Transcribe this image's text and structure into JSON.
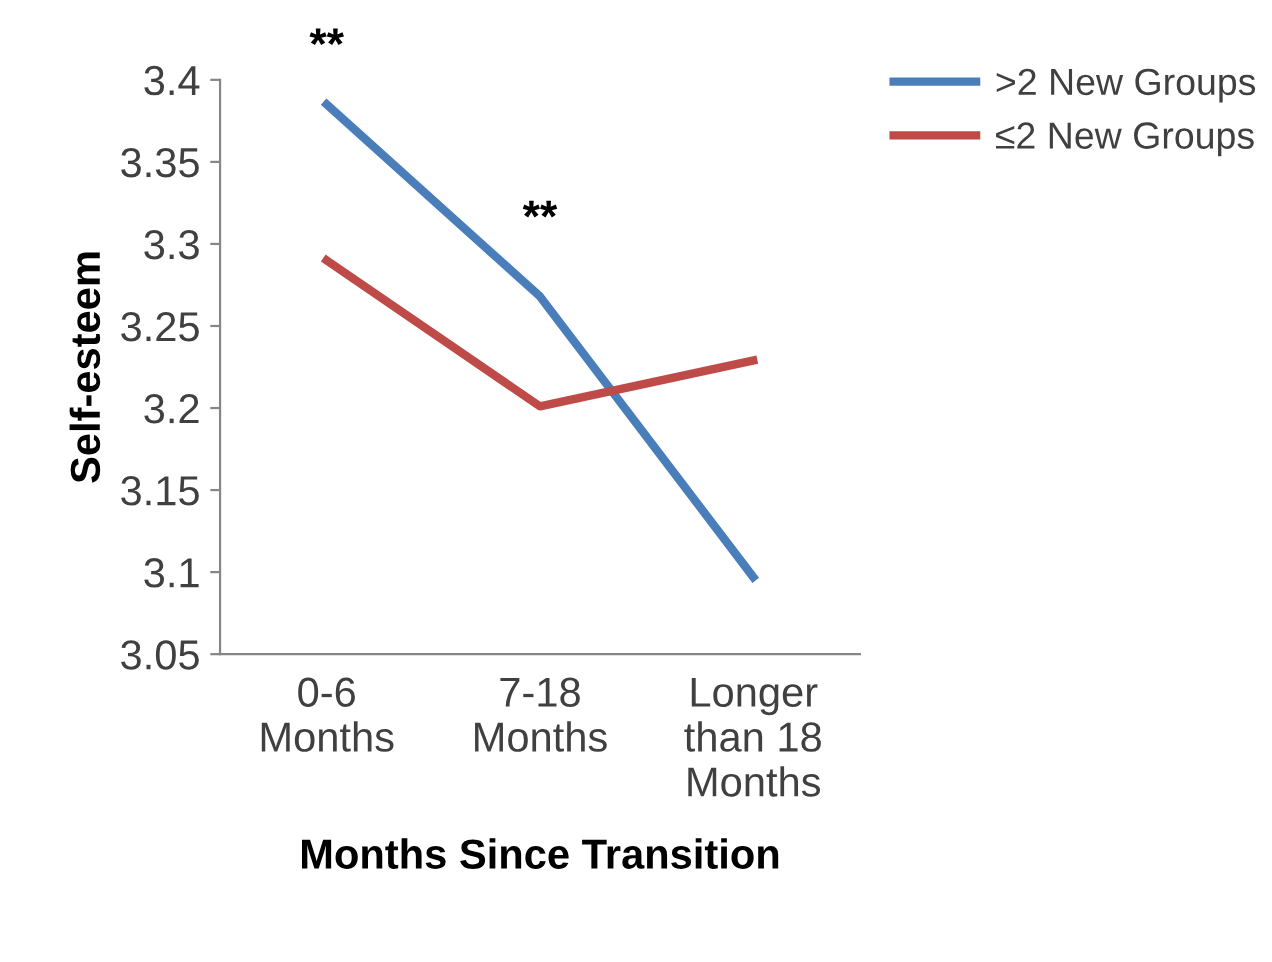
{
  "chart_data": {
    "type": "line",
    "xlabel": "Months Since Transition",
    "ylabel": "Self-esteem",
    "categories": [
      "0-6\nMonths",
      "7-18\nMonths",
      "Longer\nthan 18\nMonths"
    ],
    "series": [
      {
        "name": ">2 New Groups",
        "color": "#4a7ebb",
        "values": [
          3.385,
          3.268,
          3.097
        ]
      },
      {
        "name": "≤2 New Groups",
        "color": "#be4b48",
        "values": [
          3.29,
          3.201,
          3.229
        ]
      }
    ],
    "ylim": [
      3.05,
      3.4
    ],
    "yticks": [
      3.05,
      3.1,
      3.15,
      3.2,
      3.25,
      3.3,
      3.35,
      3.4
    ],
    "annotations": [
      "**",
      "**"
    ],
    "legend": "top right",
    "grid": false,
    "marker": "none",
    "line_style": "solid"
  }
}
